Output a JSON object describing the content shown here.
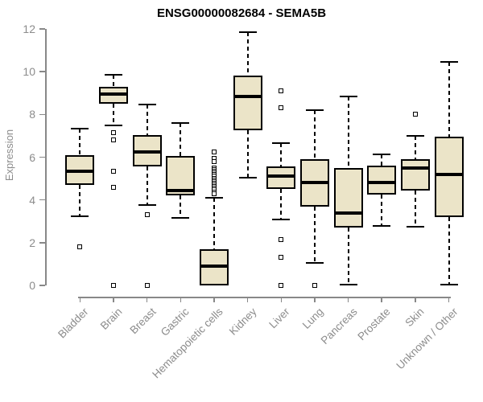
{
  "title": "ENSG00000082684 - SEMA5B",
  "chart_data": {
    "type": "boxplot",
    "title": "ENSG00000082684 - SEMA5B",
    "xlabel": "",
    "ylabel": "Expression",
    "ylim": [
      0,
      12
    ],
    "yticks": [
      0,
      2,
      4,
      6,
      8,
      10,
      12
    ],
    "grid": false,
    "legend": false,
    "box_fill_color": "#EBE4C8",
    "box_border_color": "#000000",
    "axis_color": "#888888",
    "tick_label_color": "#8C8C8C",
    "categories": [
      "Bladder",
      "Brain",
      "Breast",
      "Gastric",
      "Hematopoietic cells",
      "Kidney",
      "Liver",
      "Lung",
      "Pancreas",
      "Prostate",
      "Skin",
      "Unknown / Other"
    ],
    "boxes": [
      {
        "category": "Bladder",
        "whisker_low": 3.25,
        "q1": 4.7,
        "median": 5.35,
        "q3": 6.1,
        "whisker_high": 7.35,
        "outliers": [
          1.8
        ]
      },
      {
        "category": "Brain",
        "whisker_low": 7.5,
        "q1": 8.5,
        "median": 8.95,
        "q3": 9.3,
        "whisker_high": 9.85,
        "outliers": [
          7.15,
          6.8,
          5.35,
          4.6,
          0
        ]
      },
      {
        "category": "Breast",
        "whisker_low": 3.75,
        "q1": 5.55,
        "median": 6.25,
        "q3": 7.05,
        "whisker_high": 8.45,
        "outliers": [
          3.3,
          0
        ]
      },
      {
        "category": "Gastric",
        "whisker_low": 3.15,
        "q1": 4.2,
        "median": 4.45,
        "q3": 6.05,
        "whisker_high": 7.6,
        "outliers": []
      },
      {
        "category": "Hematopoietic cells",
        "whisker_low": 0.0,
        "q1": 0.0,
        "median": 0.9,
        "q3": 1.7,
        "whisker_high": 4.1,
        "outliers": [
          6.25,
          5.95,
          5.8,
          5.5,
          5.42,
          5.34,
          5.26,
          5.18,
          5.1,
          5.02,
          4.94,
          4.86,
          4.78,
          4.7,
          4.62,
          4.54,
          4.46,
          4.38,
          4.3
        ]
      },
      {
        "category": "Kidney",
        "whisker_low": 5.05,
        "q1": 7.25,
        "median": 8.85,
        "q3": 9.8,
        "whisker_high": 11.85,
        "outliers": []
      },
      {
        "category": "Liver",
        "whisker_low": 3.1,
        "q1": 4.5,
        "median": 5.1,
        "q3": 5.55,
        "whisker_high": 6.65,
        "outliers": [
          9.1,
          8.3,
          2.15,
          1.3,
          0
        ]
      },
      {
        "category": "Lung",
        "whisker_low": 1.05,
        "q1": 3.7,
        "median": 4.8,
        "q3": 5.9,
        "whisker_high": 8.2,
        "outliers": [
          0
        ]
      },
      {
        "category": "Pancreas",
        "whisker_low": 0.05,
        "q1": 2.7,
        "median": 3.4,
        "q3": 5.5,
        "whisker_high": 8.85,
        "outliers": []
      },
      {
        "category": "Prostate",
        "whisker_low": 2.8,
        "q1": 4.25,
        "median": 4.8,
        "q3": 5.6,
        "whisker_high": 6.15,
        "outliers": []
      },
      {
        "category": "Skin",
        "whisker_low": 2.75,
        "q1": 4.45,
        "median": 5.5,
        "q3": 5.9,
        "whisker_high": 7.0,
        "outliers": [
          8.0
        ]
      },
      {
        "category": "Unknown / Other",
        "whisker_low": 0.05,
        "q1": 3.2,
        "median": 5.2,
        "q3": 6.95,
        "whisker_high": 10.45,
        "outliers": []
      }
    ]
  }
}
